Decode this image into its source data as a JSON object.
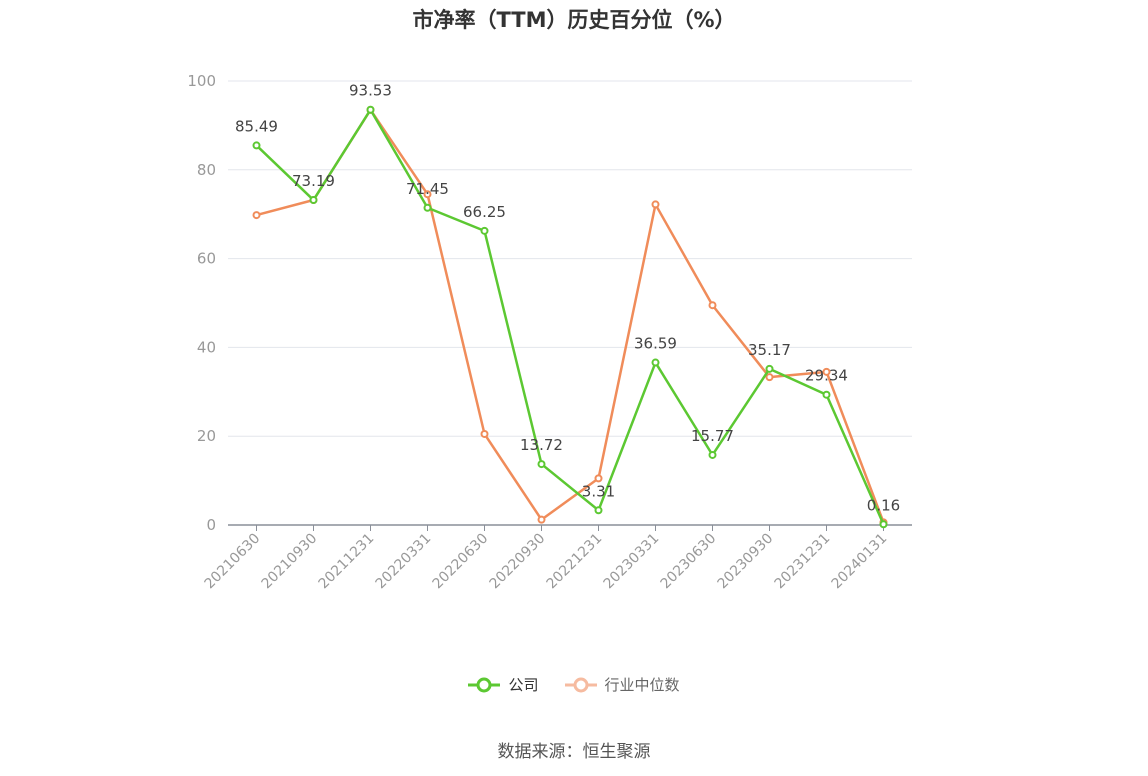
{
  "title": "市净率（TTM）历史百分位（%）",
  "source": "数据来源：恒生聚源",
  "colors": {
    "company": "#5cc832",
    "industry": "#f08c5a",
    "grid": "#e3e6ec",
    "axis": "#999999",
    "label": "#444444"
  },
  "chart_data": {
    "type": "line",
    "title": "市净率（TTM）历史百分位（%）",
    "categories": [
      "20210630",
      "20210930",
      "20211231",
      "20220331",
      "20220630",
      "20220930",
      "20221231",
      "20230331",
      "20230630",
      "20230930",
      "20231231",
      "20240131"
    ],
    "yticks": [
      "0",
      "20",
      "40",
      "60",
      "80",
      "100"
    ],
    "ylim": [
      0,
      100
    ],
    "grid": true,
    "legend_position": "bottom",
    "series": [
      {
        "name": "公司",
        "values": [
          85.49,
          73.19,
          93.53,
          71.45,
          66.25,
          13.72,
          3.31,
          36.59,
          15.77,
          35.17,
          29.34,
          0.16
        ],
        "data_labels": [
          "85.49",
          "73.19",
          "93.53",
          "71.45",
          "66.25",
          "13.72",
          "3.31",
          "36.59",
          "15.77",
          "35.17",
          "29.34",
          "0.16"
        ]
      },
      {
        "name": "行业中位数",
        "values": [
          69.8,
          73.2,
          93.5,
          74.5,
          20.5,
          1.2,
          10.5,
          72.2,
          49.5,
          33.3,
          34.5,
          0.6
        ]
      }
    ]
  }
}
